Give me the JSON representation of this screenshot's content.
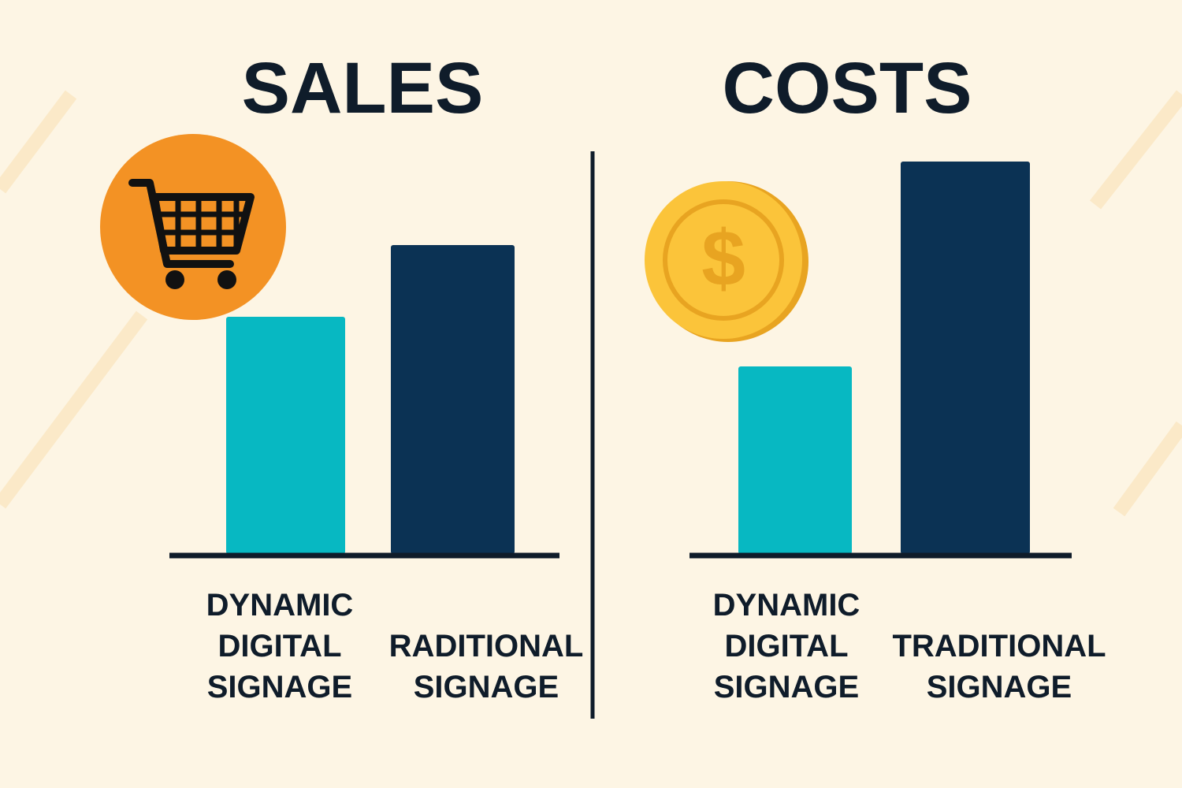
{
  "chart_data": [
    {
      "type": "bar",
      "title": "SALES",
      "categories": [
        "DYNAMIC DIGITAL SIGNAGE",
        "RADITIONAL SIGNAGE"
      ],
      "values": [
        301,
        392
      ],
      "colors": [
        "#07b8c2",
        "#0b3254"
      ],
      "ylim": [
        0,
        500
      ]
    },
    {
      "type": "bar",
      "title": "COSTS",
      "categories": [
        "DYNAMIC DIGITAL SIGNAGE",
        "TRADITIONAL SIGNAGE"
      ],
      "values": [
        238,
        498
      ],
      "colors": [
        "#07b8c2",
        "#0b3254"
      ],
      "ylim": [
        0,
        500
      ]
    }
  ]
}
